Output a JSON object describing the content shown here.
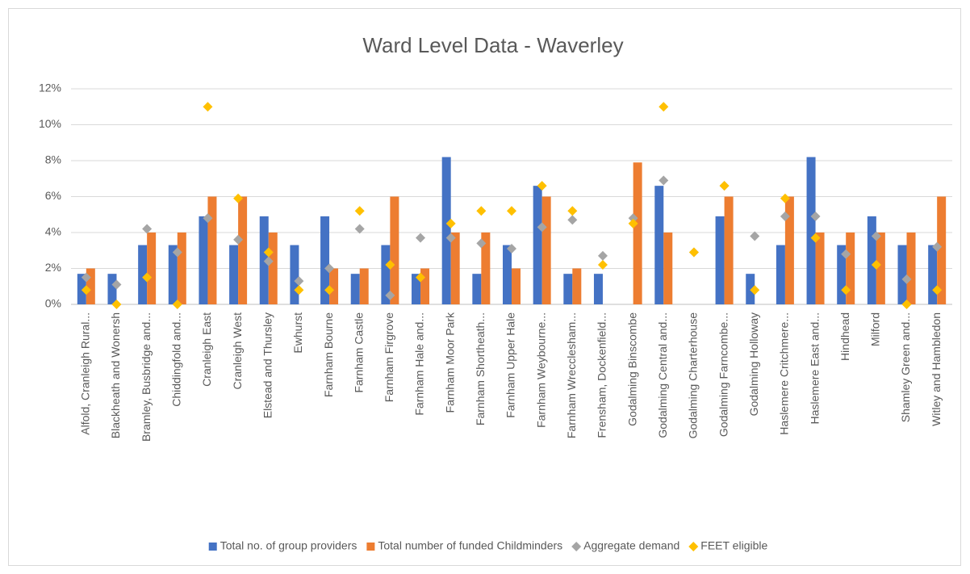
{
  "chart_data": {
    "type": "bar",
    "title": "Ward Level Data - Waverley",
    "categories": [
      "Alfold, Cranleigh Rural...",
      "Blackheath and Wonersh",
      "Bramley, Busbridge and...",
      "Chiddingfold and...",
      "Cranleigh East",
      "Cranleigh West",
      "Elstead and Thursley",
      "Ewhurst",
      "Farnham Bourne",
      "Farnham Castle",
      "Farnham Firgrove",
      "Farnham Hale and...",
      "Farnham Moor Park",
      "Farnham Shortheath...",
      "Farnham Upper Hale",
      "Farnham Weybourne...",
      "Farnham Wrecclesham...",
      "Frensham, Dockenfield...",
      "Godalming Binscombe",
      "Godalming Central and...",
      "Godalming Charterhouse",
      "Godalming Farncombe...",
      "Godalming Holloway",
      "Haslemere Critchmere...",
      "Haslemere East and...",
      "Hindhead",
      "Milford",
      "Shamley Green and...",
      "Witley and Hambledon"
    ],
    "series": [
      {
        "name": "Total no. of group providers",
        "color": "#4472c4",
        "style": "bar",
        "values": [
          1.7,
          1.7,
          3.3,
          3.3,
          4.9,
          3.3,
          4.9,
          3.3,
          4.9,
          1.7,
          3.3,
          1.7,
          8.2,
          1.7,
          3.3,
          6.6,
          1.7,
          1.7,
          0,
          6.6,
          0,
          4.9,
          1.7,
          3.3,
          8.2,
          3.3,
          4.9,
          3.3,
          3.3
        ]
      },
      {
        "name": "Total number of funded Childminders",
        "color": "#ed7d31",
        "style": "bar",
        "values": [
          2,
          0,
          4,
          4,
          6,
          6,
          4,
          0,
          2,
          2,
          6,
          2,
          4,
          4,
          2,
          6,
          2,
          0,
          7.9,
          4,
          0,
          6,
          0,
          6,
          4,
          4,
          4,
          4,
          6
        ]
      },
      {
        "name": "Aggregate demand",
        "color": "#a5a5a5",
        "style": "diamond",
        "values": [
          1.5,
          1.1,
          4.2,
          2.9,
          4.8,
          3.6,
          2.4,
          1.3,
          2.0,
          4.2,
          0.5,
          3.7,
          3.7,
          3.4,
          3.1,
          4.3,
          4.7,
          2.7,
          4.8,
          6.9,
          2.9,
          6.6,
          3.8,
          4.9,
          4.9,
          2.8,
          3.8,
          1.4,
          3.2
        ]
      },
      {
        "name": "FEET eligible",
        "color": "#ffc000",
        "style": "diamond",
        "values": [
          0.8,
          0,
          1.5,
          0,
          11,
          5.9,
          2.9,
          0.8,
          0.8,
          5.2,
          2.2,
          1.5,
          4.5,
          5.2,
          5.2,
          6.6,
          5.2,
          2.2,
          4.5,
          11,
          2.9,
          6.6,
          0.8,
          5.9,
          3.7,
          0.8,
          2.2,
          0,
          0.8
        ]
      }
    ],
    "ylim": [
      0,
      12
    ],
    "yticks": [
      {
        "value": 0,
        "label": "0%"
      },
      {
        "value": 2,
        "label": "2%"
      },
      {
        "value": 4,
        "label": "4%"
      },
      {
        "value": 6,
        "label": "6%"
      },
      {
        "value": 8,
        "label": "8%"
      },
      {
        "value": 10,
        "label": "10%"
      },
      {
        "value": 12,
        "label": "12%"
      }
    ],
    "grid": true,
    "legend": "bottom"
  }
}
